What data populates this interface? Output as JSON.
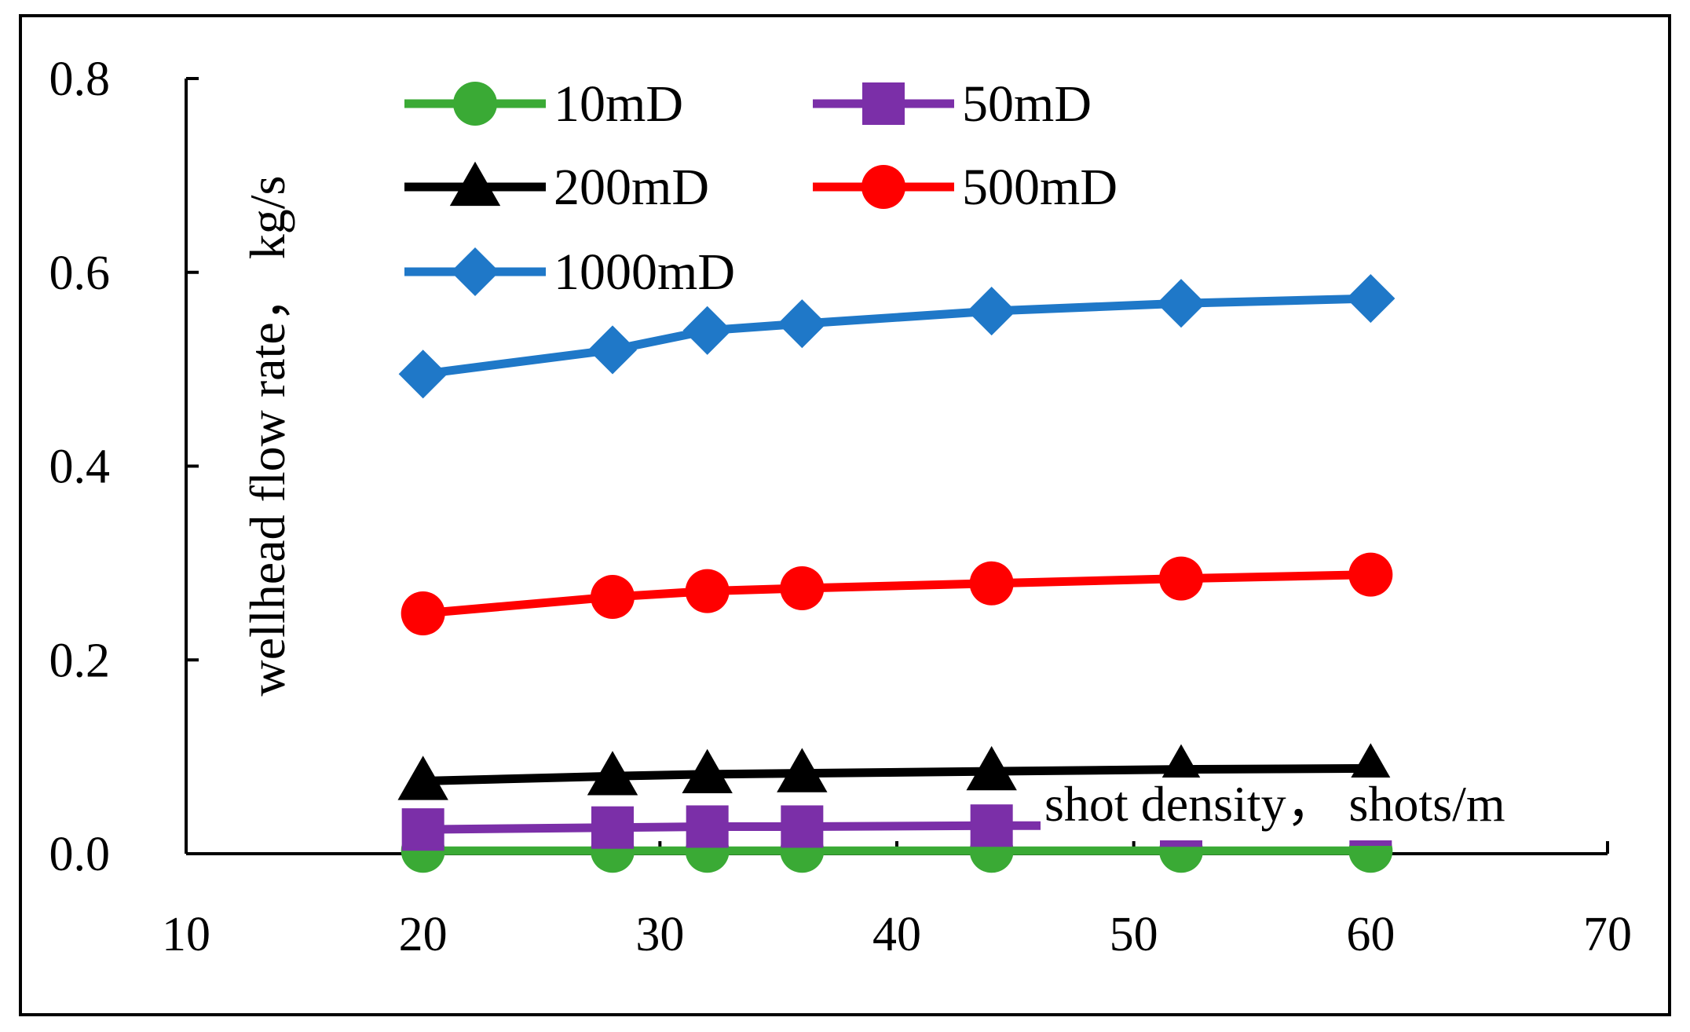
{
  "chart_data": {
    "type": "line",
    "title": "",
    "xlabel": "shot density， shots/m",
    "ylabel": "wellhead flow rate， kg/s",
    "xlim": [
      10,
      70
    ],
    "ylim": [
      0.0,
      0.8
    ],
    "xticks": [
      10,
      20,
      30,
      40,
      50,
      60,
      70
    ],
    "xtick_labels": [
      "10",
      "20",
      "30",
      "40",
      "50",
      "60",
      "70"
    ],
    "yticks": [
      0.0,
      0.2,
      0.4,
      0.6,
      0.8
    ],
    "ytick_labels": [
      "0.0",
      "0.2",
      "0.4",
      "0.6",
      "0.8"
    ],
    "grid": false,
    "legend_position": "top-left",
    "x": [
      20,
      28,
      32,
      36,
      44,
      52,
      60
    ],
    "series": [
      {
        "name": "10mD",
        "marker": "circle",
        "color": "#3aaa35",
        "values": [
          0.003,
          0.003,
          0.003,
          0.003,
          0.003,
          0.003,
          0.003
        ]
      },
      {
        "name": "50mD",
        "marker": "square",
        "color": "#7b2fa8",
        "values": [
          0.025,
          0.027,
          0.028,
          0.028,
          0.029,
          0.029,
          0.03
        ]
      },
      {
        "name": "200mD",
        "marker": "triangle",
        "color": "#000000",
        "values": [
          0.075,
          0.08,
          0.082,
          0.083,
          0.085,
          0.087,
          0.088
        ]
      },
      {
        "name": "500mD",
        "marker": "circle",
        "color": "#ff0000",
        "values": [
          0.248,
          0.265,
          0.271,
          0.274,
          0.279,
          0.284,
          0.288
        ]
      },
      {
        "name": "1000mD",
        "marker": "diamond",
        "color": "#1f78c8",
        "values": [
          0.495,
          0.52,
          0.54,
          0.547,
          0.56,
          0.568,
          0.573
        ]
      }
    ]
  }
}
